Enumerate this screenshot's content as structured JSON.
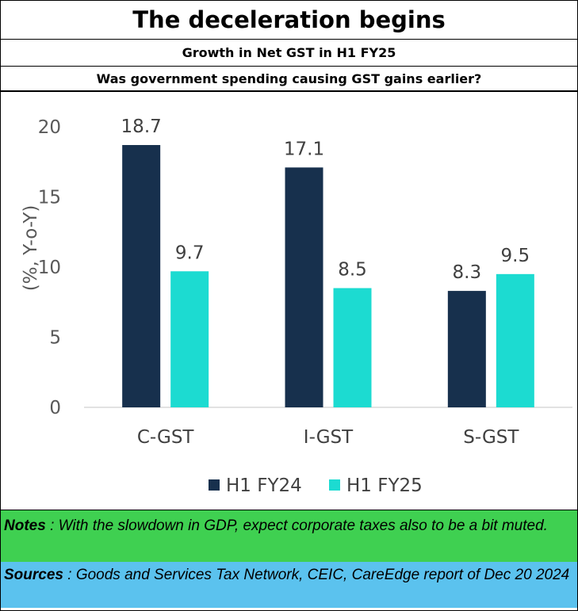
{
  "header": {
    "title": "The deceleration begins",
    "subtitle": "Growth in Net GST in H1 FY25",
    "question": "Was government spending causing GST gains earlier?"
  },
  "chart_data": {
    "type": "bar",
    "categories": [
      "C-GST",
      "I-GST",
      "S-GST"
    ],
    "series": [
      {
        "name": "H1 FY24",
        "values": [
          18.7,
          17.1,
          8.3
        ],
        "color": "#17304d"
      },
      {
        "name": "H1 FY25",
        "values": [
          9.7,
          8.5,
          9.5
        ],
        "color": "#1cdbd1"
      }
    ],
    "ylabel": "(%, Y-o-Y)",
    "ylim": [
      0,
      20
    ],
    "yticks": [
      "0",
      "5",
      "10",
      "15",
      "20"
    ],
    "grid": false,
    "legend": "bottom"
  },
  "footer": {
    "notes_label": "Notes",
    "notes_text": " : With the slowdown in GDP, expect corporate taxes also to be a bit muted.",
    "sources_label": "Sources",
    "sources_text": " : Goods and Services Tax Network, CEIC, CareEdge report of Dec 20 2024"
  }
}
